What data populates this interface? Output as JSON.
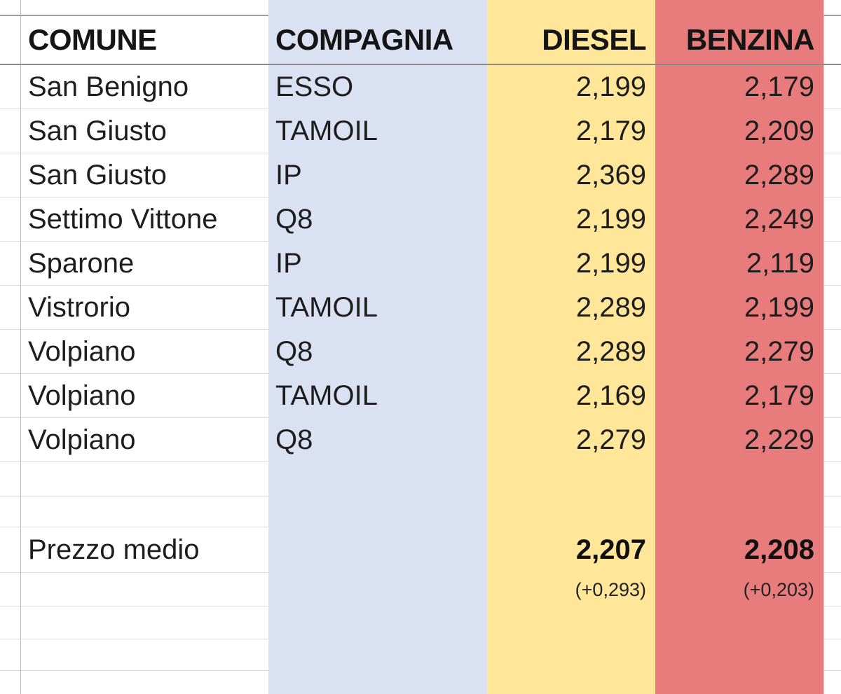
{
  "header": {
    "comune": "COMUNE",
    "compagnia": "COMPAGNIA",
    "diesel": "DIESEL",
    "benzina": "BENZINA"
  },
  "rows": [
    {
      "comune": "San Benigno",
      "compagnia": "ESSO",
      "diesel": "2,199",
      "benzina": "2,179"
    },
    {
      "comune": "San Giusto",
      "compagnia": "TAMOIL",
      "diesel": "2,179",
      "benzina": "2,209"
    },
    {
      "comune": "San Giusto",
      "compagnia": "IP",
      "diesel": "2,369",
      "benzina": "2,289"
    },
    {
      "comune": "Settimo Vittone",
      "compagnia": "Q8",
      "diesel": "2,199",
      "benzina": "2,249"
    },
    {
      "comune": "Sparone",
      "compagnia": "IP",
      "diesel": "2,199",
      "benzina": "2,119"
    },
    {
      "comune": "Vistrorio",
      "compagnia": "TAMOIL",
      "diesel": "2,289",
      "benzina": "2,199"
    },
    {
      "comune": "Volpiano",
      "compagnia": "Q8",
      "diesel": "2,289",
      "benzina": "2,279"
    },
    {
      "comune": "Volpiano",
      "compagnia": "TAMOIL",
      "diesel": "2,169",
      "benzina": "2,179"
    },
    {
      "comune": "Volpiano",
      "compagnia": "Q8",
      "diesel": "2,279",
      "benzina": "2,229"
    }
  ],
  "summary": {
    "label": "Prezzo medio",
    "diesel_avg": "2,207",
    "benzina_avg": "2,208",
    "diesel_delta": "(+0,293)",
    "benzina_delta": "(+0,203)"
  },
  "colors": {
    "compagnia_column": "#D9E1F2",
    "diesel_column": "#FFE699",
    "benzina_column": "#E87C7C"
  }
}
